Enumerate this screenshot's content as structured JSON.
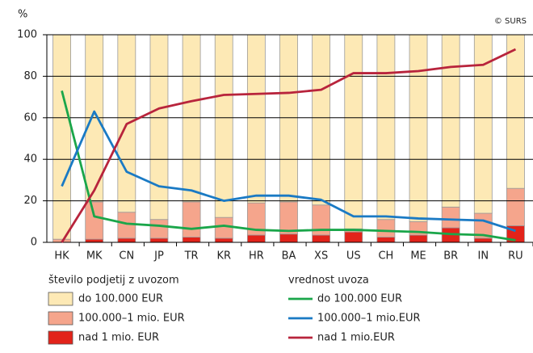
{
  "chart_data": {
    "type": "bar",
    "stacked": true,
    "y_label": "%",
    "source": "© SURS",
    "categories": [
      "HK",
      "MK",
      "CN",
      "JP",
      "TR",
      "KR",
      "HR",
      "BA",
      "XS",
      "US",
      "CH",
      "ME",
      "BR",
      "IN",
      "RU"
    ],
    "ylim": [
      0,
      100
    ],
    "yticks": [
      0,
      20,
      40,
      60,
      80,
      100
    ],
    "grid": true,
    "bar_legend_title": "število podjetij z uvozom",
    "line_legend_title": "vrednost uvoza",
    "series": [
      {
        "name": "nad 1 mio. EUR",
        "type": "bar",
        "color": "#e2231a",
        "values": [
          0,
          1.5,
          2,
          2,
          2.5,
          2,
          3.5,
          4,
          3.5,
          5,
          2.5,
          3.5,
          7,
          2,
          8
        ]
      },
      {
        "name": "100.000–1 mio. EUR",
        "type": "bar",
        "color": "#f5a58c",
        "values": [
          1.5,
          18,
          12.5,
          9,
          17,
          10,
          15.5,
          15.5,
          14.5,
          1.5,
          8.5,
          6.5,
          10,
          12,
          18
        ]
      },
      {
        "name": "do 100.000 EUR",
        "type": "bar",
        "color": "#fde9b5",
        "values": [
          98.5,
          80.5,
          85.5,
          89,
          80.5,
          88,
          81,
          80.5,
          82,
          93.5,
          89,
          90,
          83,
          86,
          74
        ]
      },
      {
        "name": "do 100.000 EUR",
        "type": "line",
        "color": "#1aa64a",
        "values": [
          73,
          12.5,
          9,
          8,
          6.5,
          8,
          6,
          5.5,
          6,
          6,
          5.5,
          5,
          4,
          3.5,
          1
        ]
      },
      {
        "name": "100.000–1 mio.EUR",
        "type": "line",
        "color": "#1a7ac4",
        "values": [
          27,
          63,
          34,
          27,
          25,
          20,
          22.5,
          22.5,
          20.5,
          12.5,
          12.5,
          11.5,
          11,
          10.5,
          5.5
        ]
      },
      {
        "name": "nad 1 mio.EUR",
        "type": "line",
        "color": "#b8243c",
        "values": [
          0,
          25,
          57,
          64.5,
          68,
          71,
          71.5,
          72,
          73.5,
          81.5,
          81.5,
          82.5,
          84.5,
          85.5,
          93
        ]
      }
    ]
  }
}
